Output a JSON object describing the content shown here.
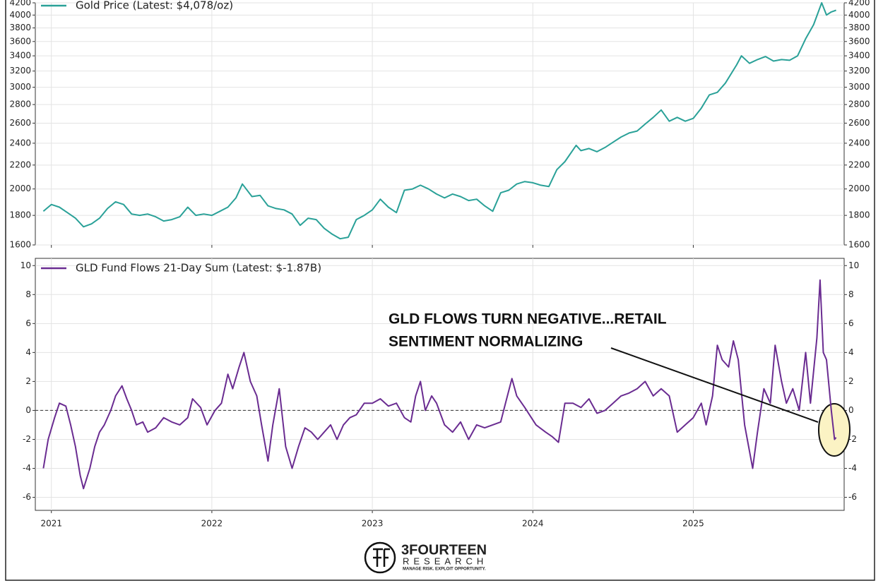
{
  "chart_data": [
    {
      "type": "line",
      "yscale": "log",
      "grid": true,
      "legend": "upper left",
      "xlim": [
        2020.9,
        2025.94
      ],
      "xticks": [
        2021,
        2022,
        2023,
        2024,
        2025
      ],
      "ylim": [
        1600,
        4200
      ],
      "yticks": [
        1600,
        1800,
        2000,
        2200,
        2400,
        2600,
        2800,
        3000,
        3200,
        3400,
        3600,
        3800,
        4000,
        4200
      ],
      "x": [
        2020.95,
        2021.0,
        2021.05,
        2021.1,
        2021.15,
        2021.2,
        2021.25,
        2021.3,
        2021.35,
        2021.4,
        2021.45,
        2021.5,
        2021.55,
        2021.6,
        2021.65,
        2021.7,
        2021.75,
        2021.8,
        2021.85,
        2021.9,
        2021.95,
        2022.0,
        2022.05,
        2022.1,
        2022.15,
        2022.19,
        2022.25,
        2022.3,
        2022.35,
        2022.4,
        2022.45,
        2022.5,
        2022.55,
        2022.6,
        2022.65,
        2022.7,
        2022.75,
        2022.8,
        2022.85,
        2022.9,
        2022.95,
        2023.0,
        2023.05,
        2023.1,
        2023.15,
        2023.2,
        2023.25,
        2023.3,
        2023.35,
        2023.4,
        2023.45,
        2023.5,
        2023.55,
        2023.6,
        2023.65,
        2023.7,
        2023.75,
        2023.8,
        2023.85,
        2023.9,
        2023.95,
        2024.0,
        2024.05,
        2024.1,
        2024.15,
        2024.2,
        2024.27,
        2024.3,
        2024.35,
        2024.4,
        2024.45,
        2024.5,
        2024.55,
        2024.6,
        2024.65,
        2024.7,
        2024.75,
        2024.8,
        2024.85,
        2024.9,
        2024.95,
        2025.0,
        2025.05,
        2025.1,
        2025.15,
        2025.2,
        2025.27,
        2025.3,
        2025.35,
        2025.4,
        2025.45,
        2025.5,
        2025.55,
        2025.6,
        2025.65,
        2025.7,
        2025.75,
        2025.8,
        2025.83,
        2025.86,
        2025.89
      ],
      "series": [
        {
          "name": "Gold Price (Latest: $4,078/oz)",
          "color": "#2aa198",
          "values": [
            1830,
            1880,
            1860,
            1820,
            1780,
            1720,
            1740,
            1780,
            1850,
            1900,
            1880,
            1810,
            1800,
            1810,
            1790,
            1760,
            1770,
            1790,
            1860,
            1800,
            1810,
            1800,
            1830,
            1860,
            1930,
            2040,
            1940,
            1950,
            1870,
            1850,
            1840,
            1810,
            1730,
            1780,
            1770,
            1710,
            1670,
            1640,
            1650,
            1770,
            1800,
            1840,
            1920,
            1860,
            1820,
            1990,
            2000,
            2030,
            2000,
            1960,
            1930,
            1960,
            1940,
            1910,
            1920,
            1870,
            1830,
            1970,
            1990,
            2040,
            2060,
            2050,
            2030,
            2020,
            2160,
            2230,
            2380,
            2330,
            2350,
            2320,
            2360,
            2410,
            2460,
            2500,
            2520,
            2590,
            2660,
            2740,
            2620,
            2660,
            2620,
            2650,
            2760,
            2910,
            2940,
            3050,
            3280,
            3400,
            3300,
            3350,
            3390,
            3330,
            3350,
            3340,
            3400,
            3640,
            3850,
            4200,
            4000,
            4050,
            4078
          ]
        }
      ]
    },
    {
      "type": "line",
      "grid": true,
      "legend": "upper left",
      "xlim": [
        2020.9,
        2025.94
      ],
      "xticks": [
        2021,
        2022,
        2023,
        2024,
        2025
      ],
      "ylim": [
        -6.9,
        10.5
      ],
      "yticks": [
        -6,
        -4,
        -2,
        0,
        2,
        4,
        6,
        8,
        10
      ],
      "reference_line": {
        "value": 0,
        "style": "dashed",
        "color": "#333333"
      },
      "x": [
        2020.95,
        2020.98,
        2021.02,
        2021.05,
        2021.09,
        2021.12,
        2021.15,
        2021.18,
        2021.2,
        2021.24,
        2021.27,
        2021.3,
        2021.33,
        2021.37,
        2021.4,
        2021.44,
        2021.47,
        2021.5,
        2021.53,
        2021.57,
        2021.6,
        2021.65,
        2021.7,
        2021.75,
        2021.8,
        2021.85,
        2021.88,
        2021.93,
        2021.97,
        2022.02,
        2022.06,
        2022.1,
        2022.13,
        2022.17,
        2022.2,
        2022.24,
        2022.28,
        2022.31,
        2022.35,
        2022.38,
        2022.42,
        2022.46,
        2022.5,
        2022.54,
        2022.58,
        2022.62,
        2022.66,
        2022.7,
        2022.74,
        2022.78,
        2022.82,
        2022.86,
        2022.9,
        2022.95,
        2023.0,
        2023.05,
        2023.1,
        2023.15,
        2023.2,
        2023.24,
        2023.27,
        2023.3,
        2023.33,
        2023.37,
        2023.4,
        2023.45,
        2023.5,
        2023.55,
        2023.6,
        2023.65,
        2023.7,
        2023.75,
        2023.8,
        2023.83,
        2023.87,
        2023.9,
        2023.95,
        2024.02,
        2024.08,
        2024.12,
        2024.16,
        2024.2,
        2024.25,
        2024.3,
        2024.35,
        2024.4,
        2024.45,
        2024.5,
        2024.55,
        2024.6,
        2024.65,
        2024.7,
        2024.75,
        2024.8,
        2024.85,
        2024.9,
        2024.95,
        2025.0,
        2025.05,
        2025.08,
        2025.12,
        2025.15,
        2025.18,
        2025.22,
        2025.25,
        2025.28,
        2025.32,
        2025.37,
        2025.4,
        2025.44,
        2025.48,
        2025.51,
        2025.55,
        2025.58,
        2025.62,
        2025.66,
        2025.7,
        2025.73,
        2025.77,
        2025.79,
        2025.81,
        2025.83,
        2025.86,
        2025.88,
        2025.89
      ],
      "series": [
        {
          "name": "GLD Fund Flows 21-Day Sum (Latest: $-1.87B)",
          "color": "#6a2c91",
          "values": [
            -4,
            -2,
            -0.5,
            0.5,
            0.3,
            -1,
            -2.5,
            -4.5,
            -5.4,
            -4,
            -2.5,
            -1.5,
            -1,
            0,
            1,
            1.7,
            0.8,
            0,
            -1,
            -0.8,
            -1.5,
            -1.2,
            -0.5,
            -0.8,
            -1,
            -0.5,
            0.8,
            0.2,
            -1,
            0,
            0.5,
            2.5,
            1.5,
            3,
            4,
            2,
            1,
            -1,
            -3.5,
            -1,
            1.5,
            -2.5,
            -4,
            -2.5,
            -1.2,
            -1.5,
            -2,
            -1.5,
            -1,
            -2,
            -1,
            -0.5,
            -0.3,
            0.5,
            0.5,
            0.8,
            0.3,
            0.5,
            -0.5,
            -0.8,
            1,
            2,
            0,
            1,
            0.5,
            -1,
            -1.5,
            -0.8,
            -2,
            -1,
            -1.2,
            -1,
            -0.8,
            0.5,
            2.2,
            1,
            0.2,
            -1,
            -1.5,
            -1.8,
            -2.2,
            0.5,
            0.5,
            0.2,
            0.8,
            -0.2,
            0,
            0.5,
            1,
            1.2,
            1.5,
            2,
            1,
            1.5,
            1,
            -1.5,
            -1,
            -0.5,
            0.5,
            -1,
            1,
            4.5,
            3.5,
            3,
            4.8,
            3.5,
            -1,
            -4,
            -1.5,
            1.5,
            0.5,
            4.5,
            2,
            0.5,
            1.5,
            0,
            4,
            0.5,
            5,
            9,
            4,
            3.5,
            0,
            -2,
            -1.87
          ]
        }
      ],
      "annotation": {
        "lines": [
          "GLD FLOWS TURN NEGATIVE...RETAIL",
          "SENTIMENT NORMALIZING"
        ]
      }
    }
  ],
  "logo": {
    "name": "3FOURTEEN",
    "sub": "RESEARCH",
    "tagline": "MANAGE RISK. EXPLOIT OPPORTUNITY."
  }
}
